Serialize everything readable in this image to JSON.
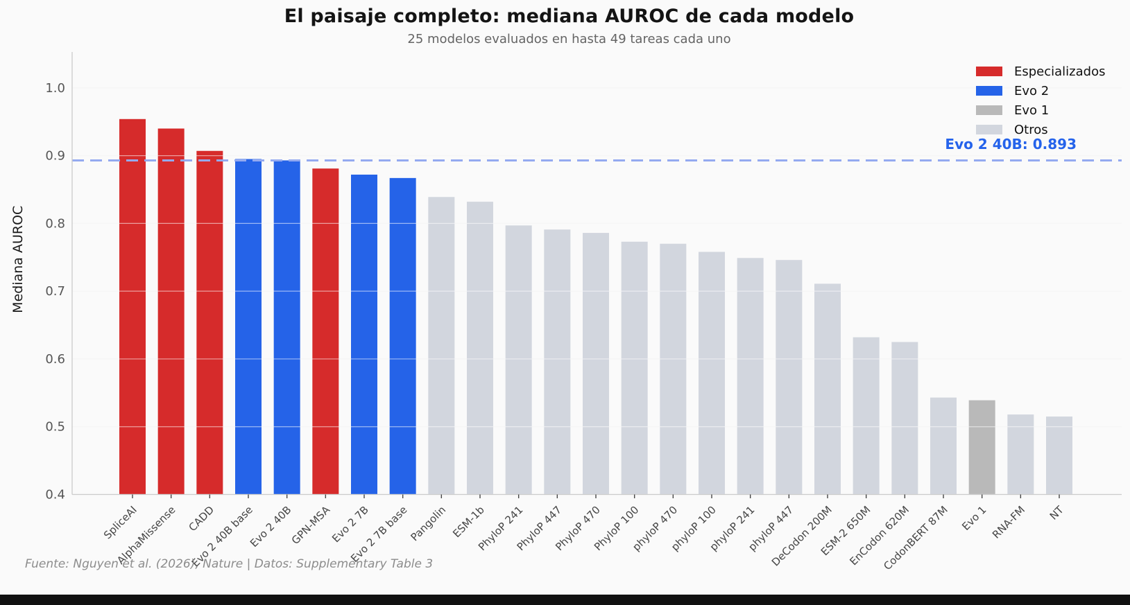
{
  "header": {
    "title": "El paisaje completo: mediana AUROC de cada modelo",
    "subtitle": "25 modelos evaluados en hasta 49 tareas cada uno"
  },
  "footer": {
    "source_text": "Fuente: Nguyen et al. (2026), Nature | Datos: Supplementary Table 3"
  },
  "chart_data": {
    "type": "bar",
    "title": "El paisaje completo: mediana AUROC de cada modelo",
    "subtitle": "25 modelos evaluados en hasta 49 tareas cada uno",
    "xlabel": "",
    "ylabel": "Mediana AUROC",
    "ylim": [
      0.4,
      1.053
    ],
    "yticks": [
      0.4,
      0.5,
      0.6,
      0.7,
      0.8,
      0.9,
      1.0
    ],
    "grid": true,
    "categories": [
      "SpliceAI",
      "AlphaMissense",
      "CADD",
      "Evo 2 40B base",
      "Evo 2 40B",
      "GPN-MSA",
      "Evo 2 7B",
      "Evo 2 7B base",
      "Pangolin",
      "ESM-1b",
      "PhyloP 241",
      "PhyloP 447",
      "PhyloP 470",
      "PhyloP 100",
      "phyloP 470",
      "phyloP 100",
      "phyloP 241",
      "phyloP 447",
      "DeCodon 200M",
      "ESM-2 650M",
      "EnCodon 620M",
      "CodonBERT 87M",
      "Evo 1",
      "RNA-FM",
      "NT"
    ],
    "values": [
      0.954,
      0.94,
      0.907,
      0.895,
      0.893,
      0.881,
      0.872,
      0.867,
      0.839,
      0.832,
      0.797,
      0.791,
      0.786,
      0.773,
      0.77,
      0.758,
      0.749,
      0.746,
      0.711,
      0.632,
      0.625,
      0.543,
      0.539,
      0.518,
      0.515
    ],
    "groups": [
      "Especializados",
      "Especializados",
      "Especializados",
      "Evo 2",
      "Evo 2",
      "Especializados",
      "Evo 2",
      "Evo 2",
      "Otros",
      "Otros",
      "Otros",
      "Otros",
      "Otros",
      "Otros",
      "Otros",
      "Otros",
      "Otros",
      "Otros",
      "Otros",
      "Otros",
      "Otros",
      "Otros",
      "Evo 1",
      "Otros",
      "Otros"
    ],
    "group_colors": {
      "Especializados": "#d62b2b",
      "Evo 2": "#2563e8",
      "Evo 1": "#b9b9b9",
      "Otros": "#d2d6de"
    },
    "legend": {
      "position": "top-right",
      "entries": [
        {
          "label": "Especializados",
          "color": "#d62b2b"
        },
        {
          "label": "Evo 2",
          "color": "#2563e8"
        },
        {
          "label": "Evo 1",
          "color": "#b9b9b9"
        },
        {
          "label": "Otros",
          "color": "#d2d6de"
        }
      ]
    },
    "reference_line": {
      "value": 0.893,
      "label": "Evo 2 40B: 0.893",
      "style": "dashed",
      "color": "#94aaf0",
      "label_color": "#2563eb"
    }
  }
}
